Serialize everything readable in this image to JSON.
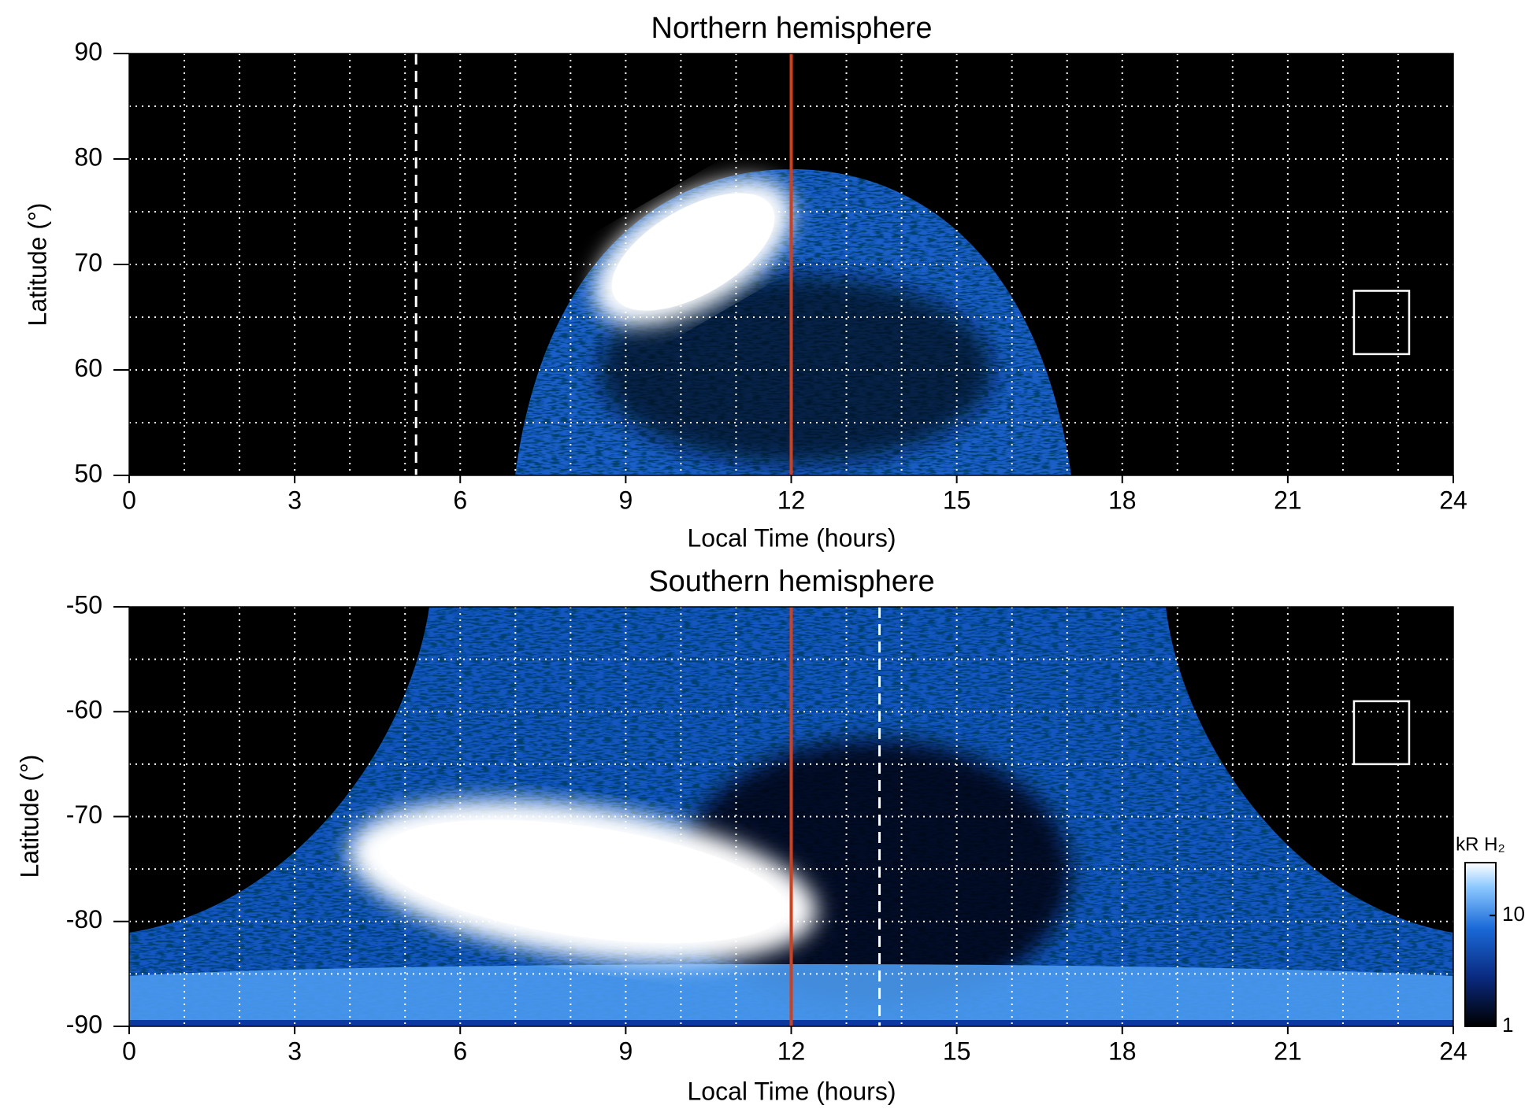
{
  "chart_data": [
    {
      "type": "heatmap",
      "title": "Northern hemisphere",
      "xlabel": "Local Time (hours)",
      "ylabel": "Latitude (°)",
      "xlim": [
        0,
        24
      ],
      "ylim": [
        50,
        90
      ],
      "xticks": [
        0,
        3,
        6,
        9,
        12,
        15,
        18,
        21,
        24
      ],
      "yticks": [
        50,
        60,
        70,
        80,
        90
      ],
      "grid": true,
      "xgrid": [
        1,
        2,
        3,
        4,
        5,
        6,
        7,
        8,
        9,
        10,
        11,
        12,
        13,
        14,
        15,
        16,
        17,
        18,
        19,
        20,
        21,
        22,
        23
      ],
      "ygrid": [
        55,
        60,
        65,
        70,
        75,
        80,
        85
      ],
      "vlines": [
        {
          "x": 5.2,
          "color": "#ffffff",
          "style": "dashed"
        },
        {
          "x": 12,
          "color": "#d0401c",
          "style": "solid"
        }
      ],
      "box": {
        "x": [
          22.2,
          23.2
        ],
        "y": [
          61.5,
          67.5
        ],
        "color": "#ffffff"
      }
    },
    {
      "type": "heatmap",
      "title": "Southern hemisphere",
      "xlabel": "Local Time (hours)",
      "ylabel": "Latitude (°)",
      "xlim": [
        0,
        24
      ],
      "ylim": [
        -90,
        -50
      ],
      "xticks": [
        0,
        3,
        6,
        9,
        12,
        15,
        18,
        21,
        24
      ],
      "yticks": [
        -90,
        -80,
        -70,
        -60,
        -50
      ],
      "grid": true,
      "xgrid": [
        1,
        2,
        3,
        4,
        5,
        6,
        7,
        8,
        9,
        10,
        11,
        12,
        13,
        14,
        15,
        16,
        17,
        18,
        19,
        20,
        21,
        22,
        23
      ],
      "ygrid": [
        -85,
        -80,
        -75,
        -70,
        -65,
        -60,
        -55
      ],
      "vlines": [
        {
          "x": 13.6,
          "color": "#ffffff",
          "style": "dashed"
        },
        {
          "x": 12,
          "color": "#d0401c",
          "style": "solid"
        }
      ],
      "box": {
        "x": [
          22.2,
          23.2
        ],
        "y": [
          -65,
          -59
        ],
        "color": "#ffffff"
      },
      "colorbar": {
        "label": "kR H₂",
        "scale": "log",
        "lim": [
          1,
          30
        ],
        "ticks": [
          1,
          10
        ]
      }
    }
  ]
}
